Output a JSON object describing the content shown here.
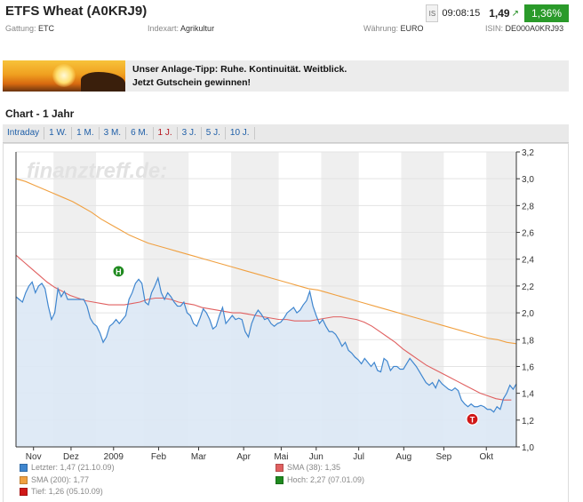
{
  "header": {
    "title": "ETFS Wheat (A0KRJ9)",
    "exchange_badge": "IS",
    "time": "09:08:15",
    "price": "1,49",
    "change": "1,36%",
    "colors": {
      "change_bg": "#2a9a2a",
      "arrow": "#1a8a1a"
    }
  },
  "meta": {
    "gattung_label": "Gattung:",
    "gattung_value": "ETC",
    "indexart_label": "Indexart:",
    "indexart_value": "Agrikultur",
    "waehrung_label": "Währung:",
    "waehrung_value": "EURO",
    "isin_label": "ISIN:",
    "isin_value": "DE000A0KRJ93"
  },
  "banner": {
    "line1": "Unser Anlage-Tipp: Ruhe. Kontinuität. Weitblick.",
    "line2": "Jetzt Gutschein gewinnen!"
  },
  "chart_title": "Chart - 1 Jahr",
  "tabs": [
    {
      "label": "Intraday",
      "active": false
    },
    {
      "label": "1 W.",
      "active": false
    },
    {
      "label": "1 M.",
      "active": false
    },
    {
      "label": "3 M.",
      "active": false
    },
    {
      "label": "6 M.",
      "active": false
    },
    {
      "label": "1 J.",
      "active": true
    },
    {
      "label": "3 J.",
      "active": false
    },
    {
      "label": "5 J.",
      "active": false
    },
    {
      "label": "10 J.",
      "active": false
    }
  ],
  "watermark": "finanztreff.de:",
  "chart_data": {
    "type": "line",
    "months": [
      "Nov",
      "Dez",
      "2009",
      "Feb",
      "Mar",
      "Apr",
      "Mai",
      "Jun",
      "Jul",
      "Aug",
      "Sep",
      "Okt"
    ],
    "ylim": [
      1.0,
      3.2
    ],
    "yticks": [
      "1,0",
      "1,2",
      "1,4",
      "1,6",
      "1,8",
      "2,0",
      "2,2",
      "2,4",
      "2,6",
      "2,8",
      "3,0",
      "3,2"
    ],
    "grid": true,
    "series": [
      {
        "name": "Letzter",
        "color": "#3f86cf",
        "fill": "#dce8f5",
        "values": [
          2.12,
          2.1,
          2.08,
          2.15,
          2.2,
          2.23,
          2.15,
          2.2,
          2.22,
          2.18,
          2.05,
          1.95,
          2.0,
          2.18,
          2.12,
          2.16,
          2.1,
          2.1,
          2.1,
          2.1,
          2.1,
          2.1,
          2.05,
          1.96,
          1.92,
          1.9,
          1.85,
          1.78,
          1.82,
          1.9,
          1.92,
          1.95,
          1.92,
          1.95,
          1.98,
          2.1,
          2.15,
          2.22,
          2.25,
          2.22,
          2.08,
          2.06,
          2.15,
          2.2,
          2.26,
          2.15,
          2.1,
          2.15,
          2.12,
          2.08,
          2.05,
          2.05,
          2.08,
          2.0,
          1.98,
          1.92,
          1.9,
          1.96,
          2.03,
          2.0,
          1.95,
          1.88,
          1.9,
          1.98,
          2.04,
          1.92,
          1.95,
          1.98,
          1.95,
          1.96,
          1.95,
          1.86,
          1.82,
          1.92,
          1.98,
          2.02,
          1.99,
          1.95,
          1.96,
          1.92,
          1.9,
          1.92,
          1.93,
          1.96,
          2.0,
          2.02,
          2.04,
          2.0,
          2.02,
          2.06,
          2.09,
          2.16,
          2.05,
          1.98,
          1.92,
          1.95,
          1.9,
          1.86,
          1.86,
          1.84,
          1.8,
          1.75,
          1.78,
          1.72,
          1.7,
          1.67,
          1.65,
          1.62,
          1.66,
          1.63,
          1.6,
          1.63,
          1.57,
          1.56,
          1.66,
          1.64,
          1.57,
          1.6,
          1.6,
          1.58,
          1.58,
          1.62,
          1.66,
          1.63,
          1.6,
          1.56,
          1.52,
          1.48,
          1.46,
          1.48,
          1.44,
          1.5,
          1.47,
          1.45,
          1.43,
          1.42,
          1.44,
          1.42,
          1.35,
          1.32,
          1.3,
          1.32,
          1.3,
          1.3,
          1.31,
          1.3,
          1.28,
          1.28,
          1.26,
          1.3,
          1.28,
          1.36,
          1.4,
          1.46,
          1.43,
          1.47
        ]
      },
      {
        "name": "SMA (38)",
        "color": "#e06060",
        "values": [
          2.43,
          2.38,
          2.33,
          2.28,
          2.23,
          2.19,
          2.16,
          2.13,
          2.11,
          2.09,
          2.08,
          2.07,
          2.06,
          2.06,
          2.06,
          2.07,
          2.08,
          2.1,
          2.11,
          2.11,
          2.1,
          2.08,
          2.07,
          2.06,
          2.04,
          2.03,
          2.02,
          2.01,
          2.0,
          2.0,
          1.99,
          1.98,
          1.97,
          1.96,
          1.95,
          1.95,
          1.94,
          1.94,
          1.94,
          1.95,
          1.96,
          1.97,
          1.97,
          1.96,
          1.95,
          1.93,
          1.9,
          1.86,
          1.82,
          1.78,
          1.73,
          1.69,
          1.65,
          1.61,
          1.58,
          1.55,
          1.52,
          1.49,
          1.46,
          1.43,
          1.4,
          1.38,
          1.36,
          1.35,
          1.35
        ]
      },
      {
        "name": "SMA (200)",
        "color": "#f0a040",
        "values": [
          3.0,
          2.98,
          2.95,
          2.92,
          2.89,
          2.86,
          2.83,
          2.79,
          2.75,
          2.7,
          2.66,
          2.62,
          2.58,
          2.55,
          2.52,
          2.5,
          2.48,
          2.46,
          2.44,
          2.42,
          2.4,
          2.38,
          2.36,
          2.34,
          2.32,
          2.3,
          2.28,
          2.26,
          2.24,
          2.22,
          2.2,
          2.18,
          2.17,
          2.15,
          2.13,
          2.11,
          2.09,
          2.07,
          2.05,
          2.03,
          2.01,
          1.99,
          1.97,
          1.95,
          1.93,
          1.91,
          1.89,
          1.87,
          1.85,
          1.83,
          1.81,
          1.8,
          1.78,
          1.77
        ]
      }
    ],
    "markers": [
      {
        "label": "H",
        "name": "Hoch",
        "color": "#1f8a1f",
        "x_frac": 0.205,
        "value": 2.27
      },
      {
        "label": "T",
        "name": "Tief",
        "color": "#d01818",
        "x_frac": 0.912,
        "value": 1.26
      }
    ]
  },
  "legend": [
    {
      "text": "Letzter: 1,47 (21.10.09)",
      "color": "#3f86cf"
    },
    {
      "text": "SMA (38): 1,35",
      "color": "#e06060"
    },
    {
      "text": "SMA (200): 1,77",
      "color": "#f0a040"
    },
    {
      "text": "Hoch: 2,27 (07.01.09)",
      "color": "#1f8a1f"
    },
    {
      "text": "Tief: 1,26 (05.10.09)",
      "color": "#d01818"
    }
  ]
}
